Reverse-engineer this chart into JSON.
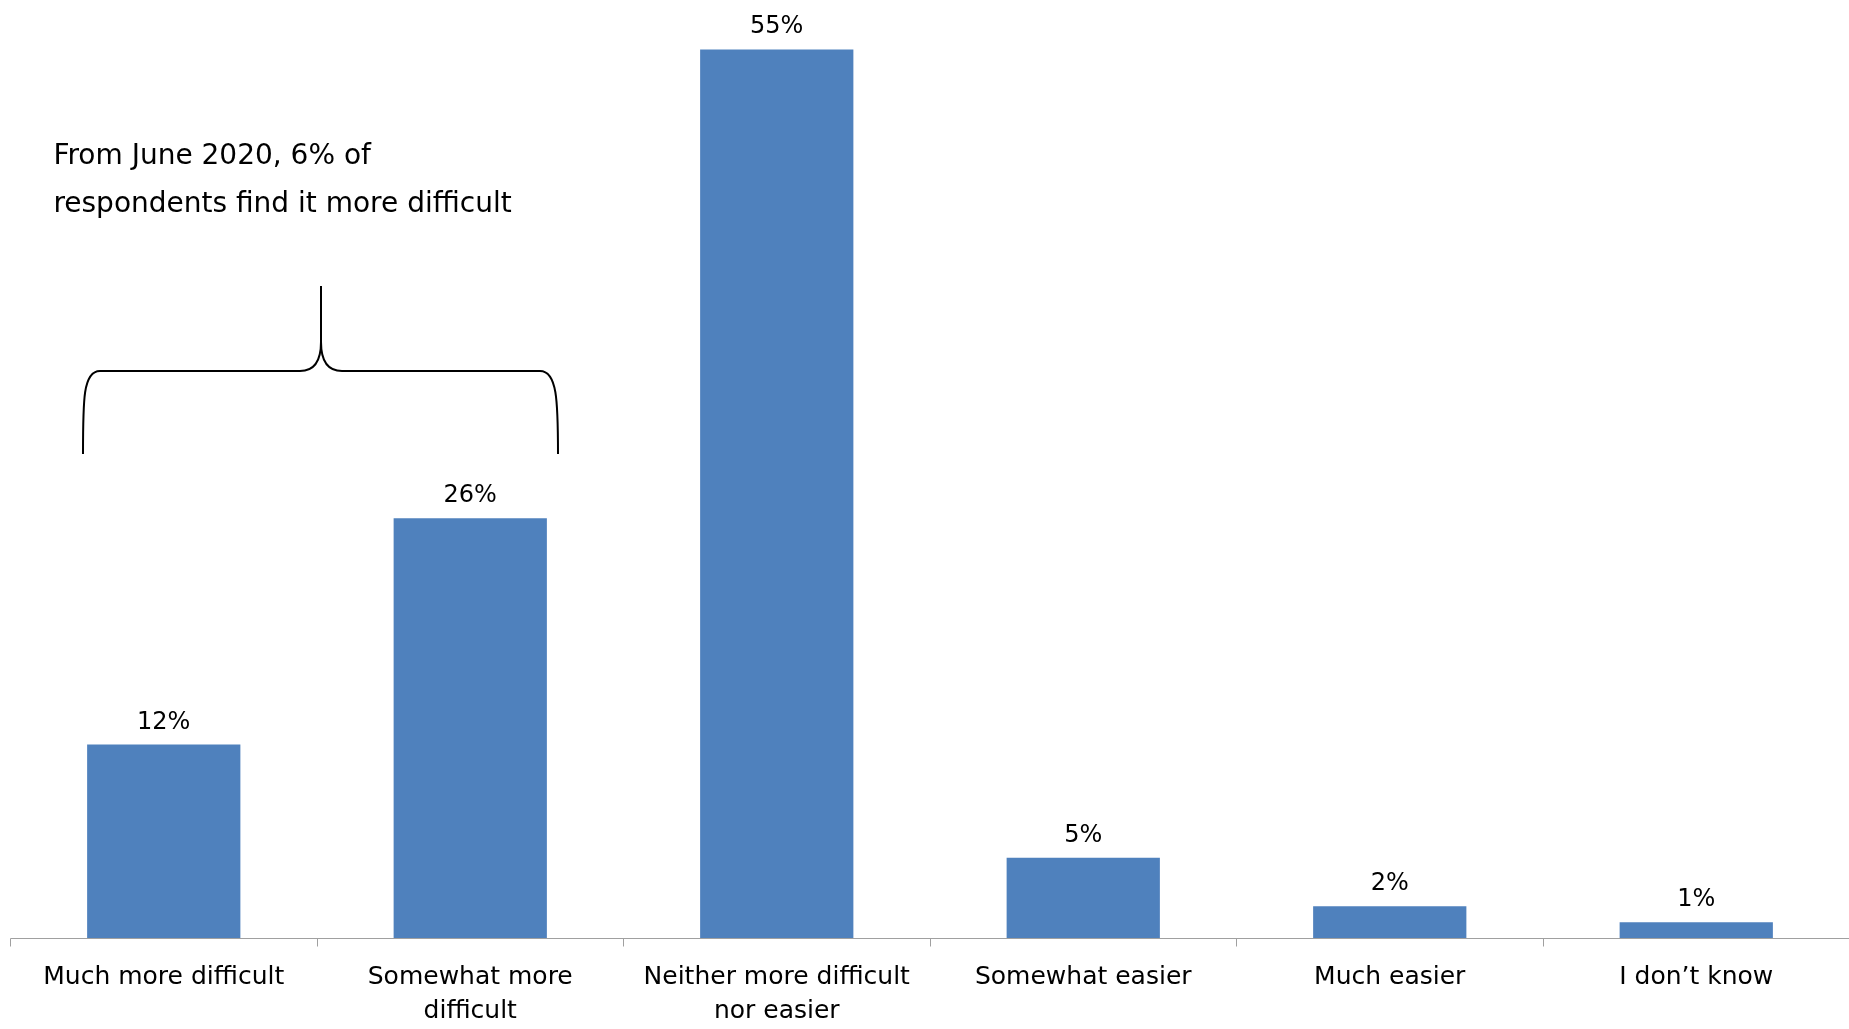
{
  "chart_data": {
    "type": "bar",
    "categories": [
      "Much more difficult",
      "Somewhat more difficult",
      "Neither more difficult nor easier",
      "Somewhat easier",
      "Much easier",
      "I don’t know"
    ],
    "values": [
      12,
      26,
      55,
      5,
      2,
      1
    ],
    "value_labels": [
      "12%",
      "26%",
      "55%",
      "5%",
      "2%",
      "1%"
    ],
    "color": "#4f81bd",
    "grid": false,
    "tick_labels": "x",
    "annotations": [
      "From June 2020, 6% of\nrespondents find it more difficult"
    ]
  }
}
